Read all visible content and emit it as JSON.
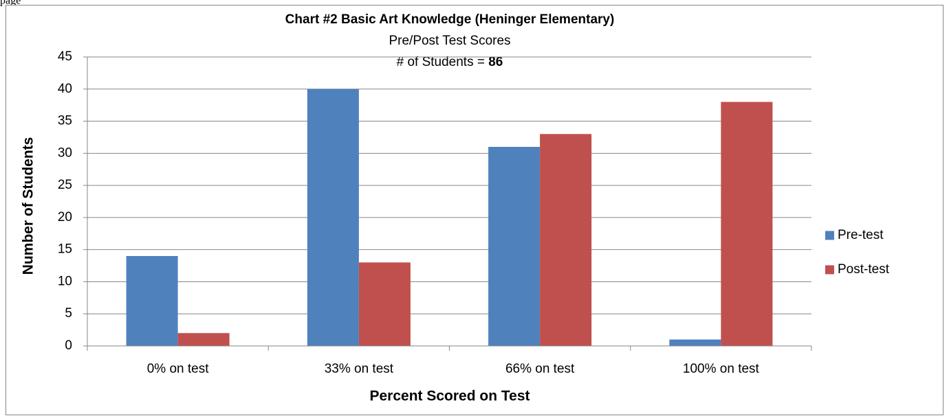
{
  "page_fragment": "page",
  "chart_data": {
    "type": "bar",
    "title": "Chart #2 Basic Art Knowledge (Heninger Elementary)",
    "subtitle": "Pre/Post Test Scores",
    "students_label": "# of Students =",
    "students": 86,
    "xlabel": "Percent Scored on Test",
    "ylabel": "Number of Students",
    "categories": [
      "0% on test",
      "33% on test",
      "66% on test",
      "100% on test"
    ],
    "series": [
      {
        "name": "Pre-test",
        "color": "#4f81bd",
        "values": [
          14,
          40,
          31,
          1
        ]
      },
      {
        "name": "Post-test",
        "color": "#c0504d",
        "values": [
          2,
          13,
          33,
          38
        ]
      }
    ],
    "ylim": [
      0,
      45
    ],
    "yticks": [
      0,
      5,
      10,
      15,
      20,
      25,
      30,
      35,
      40,
      45
    ],
    "grid": true,
    "legend": "right"
  }
}
